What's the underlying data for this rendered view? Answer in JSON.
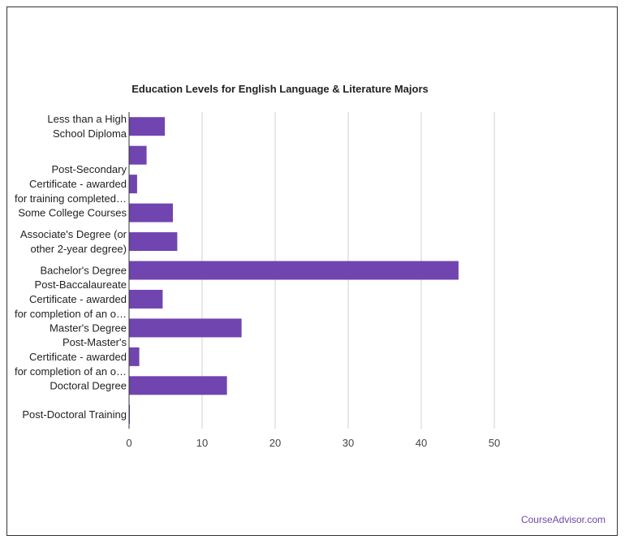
{
  "chart_data": {
    "type": "bar",
    "orientation": "horizontal",
    "title": "Education Levels for English Language & Literature Majors",
    "categories": [
      "Less than a High\nSchool Diploma",
      "",
      "Post-Secondary\nCertificate - awarded\nfor training completed…",
      "Some College Courses",
      "Associate's Degree (or\nother 2-year degree)",
      "Bachelor's Degree",
      "Post-Baccalaureate\nCertificate - awarded\nfor completion of an o…",
      "Master's Degree",
      "Post-Master's\nCertificate - awarded\nfor completion of an o…",
      "Doctoral Degree",
      "Post-Doctoral Training"
    ],
    "values": [
      4.9,
      2.4,
      1.1,
      6.0,
      6.6,
      45.1,
      4.6,
      15.4,
      1.4,
      13.4,
      0.1
    ],
    "xlim": [
      0,
      50
    ],
    "xticks": [
      0,
      10,
      20,
      30,
      40,
      50
    ],
    "xlabel": "",
    "ylabel": "",
    "grid": true,
    "bar_color": "#7045af"
  },
  "footer": {
    "credit": "CourseAdvisor.com"
  }
}
